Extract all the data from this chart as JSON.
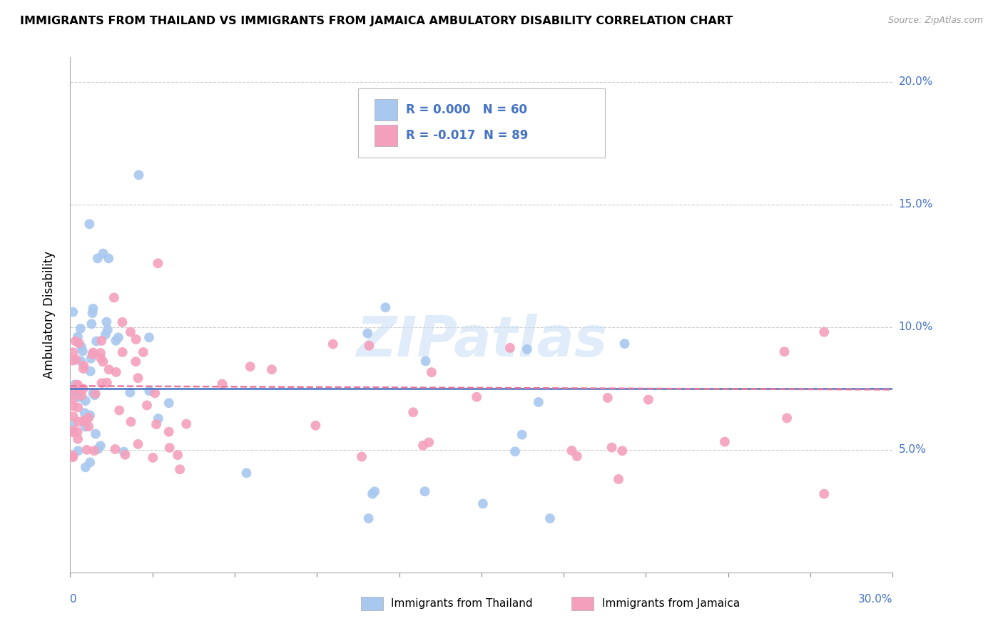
{
  "title": "IMMIGRANTS FROM THAILAND VS IMMIGRANTS FROM JAMAICA AMBULATORY DISABILITY CORRELATION CHART",
  "source": "Source: ZipAtlas.com",
  "ylabel": "Ambulatory Disability",
  "xlim": [
    0,
    0.3
  ],
  "ylim": [
    0,
    0.21
  ],
  "yticks": [
    0.0,
    0.05,
    0.1,
    0.15,
    0.2
  ],
  "ytick_labels": [
    "",
    "5.0%",
    "10.0%",
    "15.0%",
    "20.0%"
  ],
  "xticks_count": 11,
  "legend_r_thailand": "R = 0.000",
  "legend_n_thailand": "N = 60",
  "legend_r_jamaica": "R = -0.017",
  "legend_n_jamaica": "N = 89",
  "color_thailand": "#a8c8f0",
  "color_jamaica": "#f4a0bc",
  "color_thailand_line": "#4472c4",
  "color_jamaica_line": "#e8789a",
  "color_axis_labels": "#4472c4",
  "color_grid": "#cccccc",
  "watermark": "ZIPatlas",
  "thailand_regression_y": 0.075,
  "jamaica_regression_y": 0.076,
  "jamaica_regression_slope": -0.005,
  "bottom_legend_thailand": "Immigrants from Thailand",
  "bottom_legend_jamaica": "Immigrants from Jamaica"
}
